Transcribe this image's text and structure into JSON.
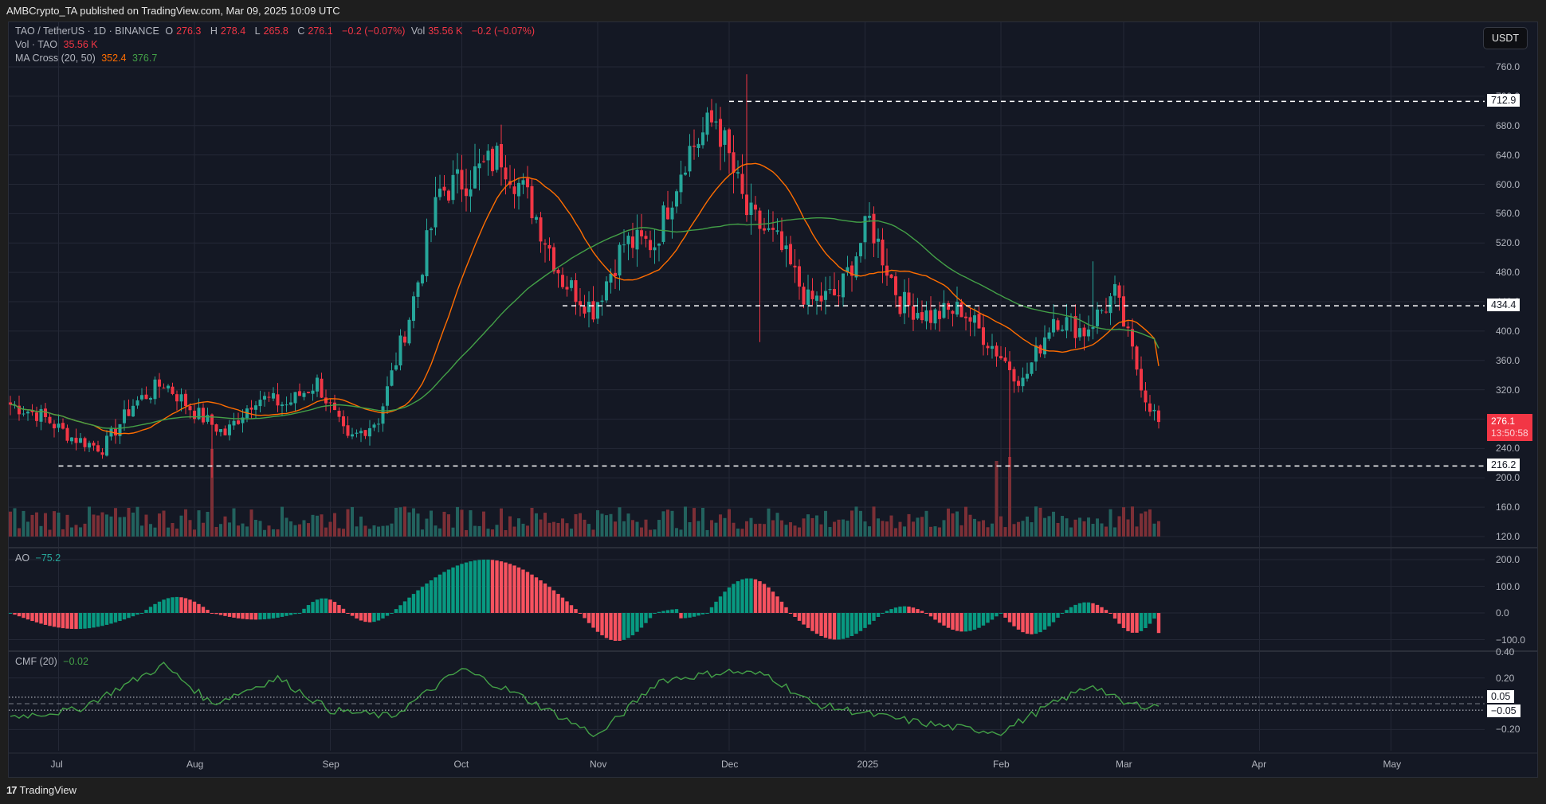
{
  "publisher": "AMBCrypto_TA published on TradingView.com, Mar 09, 2025 10:09 UTC",
  "footer": {
    "logo": "17",
    "brand": "TradingView"
  },
  "currency_button": "USDT",
  "legend": {
    "symbol": "TAO / TetherUS · 1D · BINANCE",
    "o_label": "O",
    "o": "276.3",
    "h_label": "H",
    "h": "278.4",
    "l_label": "L",
    "l": "265.8",
    "c_label": "C",
    "c": "276.1",
    "change": "−0.2 (−0.07%)",
    "vol_label": "Vol",
    "vol": "35.56 K",
    "vol_change": "−0.2 (−0.07%)",
    "vol_line_label": "Vol · TAO",
    "vol_line_value": "35.56 K",
    "ma_label": "MA Cross (20, 50)",
    "ma_fast": "352.4",
    "ma_slow": "376.7",
    "ao_label": "AO",
    "ao_value": "−75.2",
    "cmf_label": "CMF (20)",
    "cmf_value": "−0.02"
  },
  "price_axis": [
    "760.0",
    "720.0",
    "680.0",
    "640.0",
    "600.0",
    "560.0",
    "520.0",
    "480.0",
    "440.0",
    "400.0",
    "360.0",
    "320.0",
    "280.0",
    "240.0",
    "200.0",
    "160.0",
    "120.0"
  ],
  "ao_axis": [
    "200.0",
    "100.0",
    "0.0",
    "−100.0"
  ],
  "cmf_axis": [
    "0.40",
    "0.20",
    "−0.20"
  ],
  "time_axis": [
    "Jul",
    "Aug",
    "Sep",
    "Oct",
    "Nov",
    "Dec",
    "2025",
    "Feb",
    "Mar",
    "Apr",
    "May"
  ],
  "levels": {
    "resistance_high": "712.9",
    "mid": "434.4",
    "support": "216.2",
    "cmf_upper": "0.05",
    "cmf_lower": "−0.05"
  },
  "last_price": {
    "value": "276.1",
    "countdown": "13:50:58"
  },
  "colors": {
    "up": "#26a69a",
    "down": "#f23645",
    "ma_fast": "#ff6d00",
    "ma_slow": "#43a047",
    "ao_up": "#089981",
    "ao_down": "#f7525f",
    "cmf": "#43a047",
    "bg": "#141824"
  },
  "chart_data": [
    {
      "type": "candlestick",
      "title": "TAO / TetherUS · 1D · BINANCE",
      "xlabel": "",
      "ylabel": "USDT",
      "ylim": [
        110,
        770
      ],
      "x_range": [
        "2024-06-20",
        "2025-05-20"
      ],
      "annotations": [
        {
          "type": "hline",
          "value": 712.9,
          "style": "dashed",
          "from": "2024-12-01"
        },
        {
          "type": "hline",
          "value": 434.4,
          "style": "dashed",
          "from": "2024-10-24"
        },
        {
          "type": "hline",
          "value": 216.2,
          "style": "dashed",
          "from": "2024-07-01"
        }
      ],
      "closes_weekly_approx": {
        "dates": [
          "2024-06-20",
          "2024-06-27",
          "2024-07-04",
          "2024-07-11",
          "2024-07-18",
          "2024-07-25",
          "2024-08-01",
          "2024-08-08",
          "2024-08-15",
          "2024-08-22",
          "2024-08-29",
          "2024-09-05",
          "2024-09-12",
          "2024-09-19",
          "2024-09-26",
          "2024-10-03",
          "2024-10-10",
          "2024-10-17",
          "2024-10-24",
          "2024-10-31",
          "2024-11-07",
          "2024-11-14",
          "2024-11-21",
          "2024-11-28",
          "2024-12-05",
          "2024-12-12",
          "2024-12-19",
          "2024-12-26",
          "2025-01-02",
          "2025-01-09",
          "2025-01-16",
          "2025-01-23",
          "2025-01-30",
          "2025-02-06",
          "2025-02-13",
          "2025-02-20",
          "2025-02-27",
          "2025-03-06",
          "2025-03-09"
        ],
        "values": [
          300,
          285,
          255,
          240,
          300,
          330,
          290,
          260,
          310,
          300,
          330,
          250,
          280,
          420,
          590,
          610,
          640,
          570,
          470,
          430,
          520,
          520,
          640,
          690,
          560,
          520,
          440,
          450,
          550,
          440,
          420,
          430,
          380,
          330,
          420,
          400,
          450,
          310,
          276.1
        ]
      },
      "ma_cross": {
        "fast_period": 20,
        "slow_period": 50,
        "fast_last": 352.4,
        "slow_last": 376.7
      },
      "volume": {
        "last": "35.56K",
        "peak_dates": [
          "2024-08-05",
          "2025-02-03"
        ]
      }
    },
    {
      "type": "bar",
      "title": "AO",
      "last_value": -75.2,
      "ylim": [
        -130,
        215
      ],
      "phases": [
        {
          "from": "2024-06-20",
          "to": "2024-07-20",
          "sign": "negative",
          "min": -60
        },
        {
          "from": "2024-07-20",
          "to": "2024-08-05",
          "sign": "positive",
          "max": 60
        },
        {
          "from": "2024-08-05",
          "to": "2024-08-25",
          "sign": "negative",
          "min": -25
        },
        {
          "from": "2024-08-25",
          "to": "2024-09-05",
          "sign": "positive",
          "max": 55
        },
        {
          "from": "2024-09-05",
          "to": "2024-09-15",
          "sign": "negative",
          "min": -35
        },
        {
          "from": "2024-09-15",
          "to": "2024-10-28",
          "sign": "positive",
          "max": 200
        },
        {
          "from": "2024-10-28",
          "to": "2024-11-14",
          "sign": "negative",
          "min": -105
        },
        {
          "from": "2024-11-14",
          "to": "2024-11-26",
          "sign": "mixed",
          "max": 15,
          "min": -20
        },
        {
          "from": "2024-11-26",
          "to": "2024-12-15",
          "sign": "positive",
          "max": 130
        },
        {
          "from": "2024-12-15",
          "to": "2025-01-05",
          "sign": "negative",
          "min": -100
        },
        {
          "from": "2025-01-05",
          "to": "2025-01-15",
          "sign": "positive",
          "max": 25
        },
        {
          "from": "2025-01-15",
          "to": "2025-02-01",
          "sign": "negative",
          "min": -70
        },
        {
          "from": "2025-02-01",
          "to": "2025-02-15",
          "sign": "negative",
          "min": -80
        },
        {
          "from": "2025-02-15",
          "to": "2025-02-26",
          "sign": "positive",
          "max": 40
        },
        {
          "from": "2025-02-26",
          "to": "2025-03-09",
          "sign": "negative",
          "min": -75
        }
      ]
    },
    {
      "type": "line",
      "title": "CMF (20)",
      "last_value": -0.02,
      "ylim": [
        -0.3,
        0.42
      ],
      "levels": [
        0.05,
        0,
        -0.05
      ],
      "points_approx": {
        "dates": [
          "2024-06-20",
          "2024-07-05",
          "2024-07-25",
          "2024-08-05",
          "2024-08-20",
          "2024-09-01",
          "2024-09-15",
          "2024-10-01",
          "2024-10-15",
          "2024-11-01",
          "2024-11-15",
          "2024-12-01",
          "2024-12-10",
          "2024-12-20",
          "2025-01-05",
          "2025-01-20",
          "2025-02-01",
          "2025-02-10",
          "2025-02-22",
          "2025-03-01",
          "2025-03-09"
        ],
        "values": [
          -0.1,
          -0.05,
          0.3,
          0.0,
          0.2,
          -0.05,
          -0.1,
          0.27,
          0.05,
          -0.25,
          0.18,
          0.25,
          0.22,
          0.0,
          -0.1,
          -0.18,
          -0.22,
          -0.05,
          0.15,
          0.0,
          -0.02
        ]
      }
    }
  ]
}
